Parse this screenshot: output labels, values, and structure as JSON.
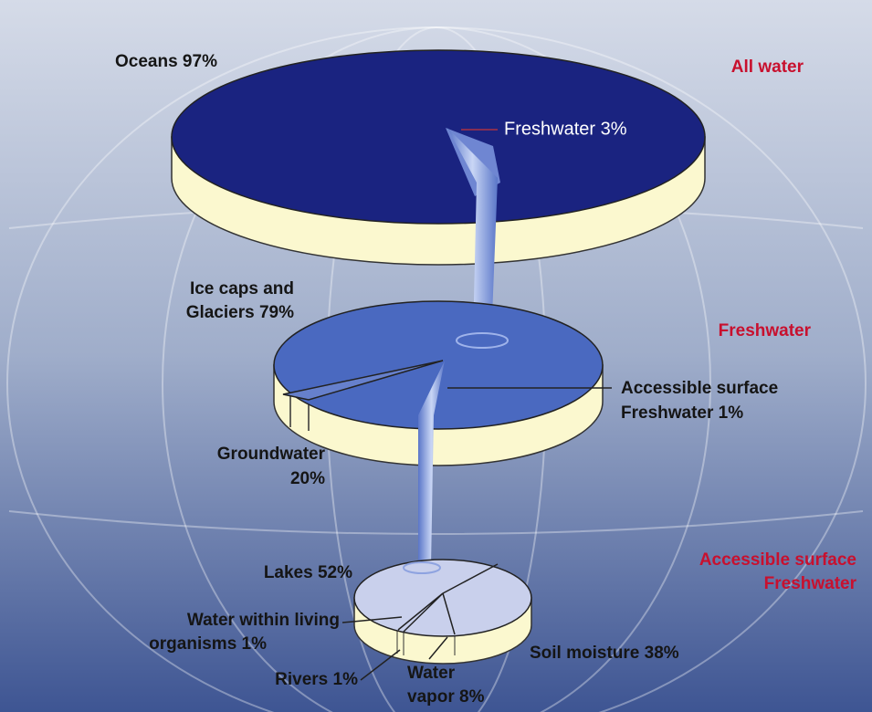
{
  "headings": {
    "all_water": "All water",
    "freshwater": "Freshwater",
    "accessible": [
      "Accessible surface",
      "Freshwater"
    ]
  },
  "all_water": {
    "oceans": "Oceans 97%",
    "freshwater": "Freshwater 3%"
  },
  "freshwater": {
    "ice_caps": [
      "Ice caps and",
      "Glaciers 79%"
    ],
    "groundwater": [
      "Groundwater",
      "20%"
    ],
    "accessible": [
      "Accessible surface",
      "Freshwater 1%"
    ]
  },
  "accessible_surface": {
    "lakes": "Lakes 52%",
    "living": [
      "Water within living",
      "organisms 1%"
    ],
    "rivers": "Rivers 1%",
    "vapor": [
      "Water",
      "vapor 8%"
    ],
    "soil": "Soil moisture 38%"
  }
}
